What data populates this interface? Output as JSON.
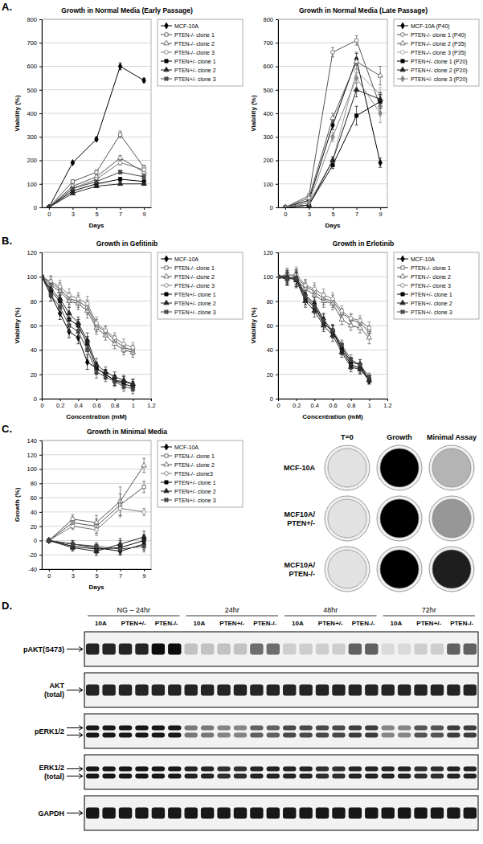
{
  "panel_labels": [
    "A.",
    "B.",
    "C.",
    "D."
  ],
  "chart_data": [
    {
      "type": "line",
      "title": "Growth in Normal Media (Early Passage)",
      "x_label": "Days",
      "y_label": "Viability (%)",
      "categories": [
        "0",
        "3",
        "5",
        "7",
        "9"
      ],
      "ylim": [
        0,
        800
      ],
      "yticks": [
        0,
        100,
        200,
        300,
        400,
        500,
        600,
        700,
        800
      ],
      "grid": true,
      "legend": "right",
      "series": [
        {
          "name": "MCF-10A",
          "color": "#000000",
          "marker": "diamond",
          "values": [
            0,
            190,
            290,
            600,
            540
          ],
          "errors": [
            0,
            5,
            8,
            15,
            8
          ]
        },
        {
          "name": "PTEN-/- clone 1",
          "color": "#555555",
          "marker": "square-open",
          "values": [
            0,
            110,
            150,
            310,
            170
          ],
          "errors": [
            0,
            8,
            10,
            15,
            10
          ]
        },
        {
          "name": "PTEN-/- clone 2",
          "color": "#555555",
          "marker": "triangle-open",
          "values": [
            0,
            90,
            130,
            210,
            150
          ],
          "errors": [
            0,
            6,
            8,
            10,
            8
          ]
        },
        {
          "name": "PTEN-/- clone 3",
          "color": "#777777",
          "marker": "circle-open",
          "values": [
            0,
            80,
            120,
            190,
            160
          ],
          "errors": [
            0,
            5,
            8,
            10,
            8
          ]
        },
        {
          "name": "PTEN+/- clone 1",
          "color": "#000000",
          "marker": "square",
          "values": [
            0,
            70,
            100,
            120,
            110
          ],
          "errors": [
            0,
            5,
            6,
            8,
            6
          ]
        },
        {
          "name": "PTEN+/- clone 2",
          "color": "#222222",
          "marker": "triangle",
          "values": [
            0,
            60,
            90,
            100,
            100
          ],
          "errors": [
            0,
            5,
            5,
            6,
            6
          ]
        },
        {
          "name": "PTEN+/- clone 3",
          "color": "#444444",
          "marker": "cross",
          "values": [
            0,
            80,
            110,
            150,
            130
          ],
          "errors": [
            0,
            5,
            6,
            8,
            8
          ]
        }
      ]
    },
    {
      "type": "line",
      "title": "Growth in Normal Media (Late Passage)",
      "x_label": "Days",
      "y_label": "Viability (%)",
      "categories": [
        "0",
        "3",
        "5",
        "7",
        "9"
      ],
      "ylim": [
        0,
        800
      ],
      "yticks": [
        0,
        100,
        200,
        300,
        400,
        500,
        600,
        700,
        800
      ],
      "grid": true,
      "legend": "right",
      "series": [
        {
          "name": "MCF-10A (P40)",
          "color": "#000000",
          "marker": "diamond",
          "values": [
            0,
            30,
            350,
            630,
            190
          ],
          "errors": [
            0,
            5,
            20,
            25,
            20
          ]
        },
        {
          "name": "PTEN-/- clone 1 (P40)",
          "color": "#555555",
          "marker": "circle-open",
          "values": [
            0,
            50,
            660,
            710,
            430
          ],
          "errors": [
            0,
            8,
            20,
            20,
            30
          ]
        },
        {
          "name": "PTEN-/- clone 2 (P35)",
          "color": "#555555",
          "marker": "triangle-open",
          "values": [
            0,
            40,
            380,
            620,
            560
          ],
          "errors": [
            0,
            6,
            20,
            40,
            40
          ]
        },
        {
          "name": "PTEN-/- clone 3 (P35)",
          "color": "#999999",
          "marker": "circle-open",
          "values": [
            0,
            20,
            200,
            580,
            480
          ],
          "errors": [
            0,
            5,
            15,
            30,
            30
          ]
        },
        {
          "name": "PTEN+/- clone 1 (P20)",
          "color": "#000000",
          "marker": "square",
          "values": [
            0,
            10,
            180,
            390,
            450
          ],
          "errors": [
            0,
            4,
            15,
            40,
            30
          ]
        },
        {
          "name": "PTEN+/- clone 2 (P20)",
          "color": "#222222",
          "marker": "triangle",
          "values": [
            0,
            10,
            200,
            500,
            460
          ],
          "errors": [
            0,
            4,
            15,
            30,
            30
          ]
        },
        {
          "name": "PTEN+/- clone 3 (P20)",
          "color": "#888888",
          "marker": "diamond",
          "values": [
            0,
            20,
            300,
            550,
            400
          ],
          "errors": [
            0,
            5,
            20,
            40,
            40
          ]
        }
      ]
    },
    {
      "type": "line",
      "title": "Growth in Gefitinib",
      "x_label": "Concentration (mM)",
      "y_label": "Viability (%)",
      "x": [
        0,
        0.1,
        0.2,
        0.3,
        0.4,
        0.5,
        0.6,
        0.7,
        0.8,
        0.9,
        1
      ],
      "xlim": [
        0,
        1.2
      ],
      "xticks": [
        0,
        0.2,
        0.4,
        0.6,
        0.8,
        1,
        1.2
      ],
      "ylim": [
        0,
        120
      ],
      "yticks": [
        0,
        20,
        40,
        60,
        80,
        100,
        120
      ],
      "grid": true,
      "legend": "right",
      "series": [
        {
          "name": "MCF-10A",
          "color": "#000000",
          "marker": "diamond",
          "values": [
            100,
            85,
            70,
            55,
            50,
            30,
            25,
            20,
            15,
            14,
            12
          ],
          "errors": [
            0,
            5,
            5,
            5,
            5,
            6,
            5,
            4,
            4,
            4,
            4
          ]
        },
        {
          "name": "PTEN-/- clone 1",
          "color": "#555555",
          "marker": "square-open",
          "values": [
            100,
            95,
            90,
            82,
            80,
            75,
            60,
            55,
            48,
            42,
            40
          ],
          "errors": [
            0,
            5,
            5,
            5,
            5,
            6,
            5,
            4,
            4,
            4,
            4
          ]
        },
        {
          "name": "PTEN-/- clone 2",
          "color": "#555555",
          "marker": "triangle-open",
          "values": [
            100,
            93,
            88,
            80,
            78,
            72,
            58,
            52,
            45,
            40,
            38
          ],
          "errors": [
            0,
            5,
            5,
            5,
            5,
            6,
            5,
            4,
            4,
            4,
            4
          ]
        },
        {
          "name": "PTEN-/- clone 3",
          "color": "#777777",
          "marker": "circle-open",
          "values": [
            100,
            96,
            92,
            85,
            82,
            78,
            62,
            56,
            50,
            45,
            42
          ],
          "errors": [
            0,
            5,
            5,
            5,
            5,
            6,
            5,
            4,
            4,
            4,
            4
          ]
        },
        {
          "name": "PTEN+/- clone 1",
          "color": "#000000",
          "marker": "square",
          "values": [
            100,
            88,
            80,
            65,
            60,
            45,
            25,
            20,
            15,
            12,
            10
          ],
          "errors": [
            0,
            5,
            5,
            5,
            5,
            6,
            5,
            4,
            4,
            4,
            4
          ]
        },
        {
          "name": "PTEN+/- clone 2",
          "color": "#222222",
          "marker": "triangle",
          "values": [
            100,
            90,
            82,
            70,
            62,
            48,
            28,
            22,
            18,
            15,
            12
          ],
          "errors": [
            0,
            5,
            5,
            5,
            5,
            6,
            5,
            4,
            4,
            4,
            4
          ]
        },
        {
          "name": "PTEN+/- clone 3",
          "color": "#444444",
          "marker": "cross",
          "values": [
            100,
            85,
            75,
            60,
            55,
            40,
            22,
            18,
            14,
            10,
            8
          ],
          "errors": [
            0,
            5,
            5,
            5,
            5,
            6,
            5,
            4,
            4,
            4,
            4
          ]
        }
      ]
    },
    {
      "type": "line",
      "title": "Growth in Erlotinib",
      "x_label": "Concentration (mM)",
      "y_label": "Viability (%)",
      "x": [
        0,
        0.1,
        0.2,
        0.3,
        0.4,
        0.5,
        0.6,
        0.7,
        0.8,
        0.9,
        1
      ],
      "xlim": [
        0,
        1.2
      ],
      "xticks": [
        0,
        0.2,
        0.4,
        0.6,
        0.8,
        1,
        1.2
      ],
      "ylim": [
        0,
        120
      ],
      "yticks": [
        0,
        20,
        40,
        60,
        80,
        100,
        120
      ],
      "grid": true,
      "legend": "right",
      "series": [
        {
          "name": "MCF-10A",
          "color": "#000000",
          "marker": "diamond",
          "values": [
            100,
            98,
            100,
            85,
            78,
            65,
            55,
            42,
            30,
            28,
            15
          ],
          "errors": [
            0,
            5,
            6,
            5,
            5,
            5,
            5,
            4,
            4,
            4,
            3
          ]
        },
        {
          "name": "PTEN-/- clone 1",
          "color": "#555555",
          "marker": "square-open",
          "values": [
            100,
            102,
            100,
            92,
            88,
            82,
            80,
            70,
            65,
            62,
            55
          ],
          "errors": [
            0,
            5,
            6,
            5,
            5,
            5,
            5,
            4,
            4,
            4,
            5
          ]
        },
        {
          "name": "PTEN-/- clone 2",
          "color": "#555555",
          "marker": "triangle-open",
          "values": [
            100,
            100,
            98,
            90,
            85,
            80,
            78,
            65,
            60,
            58,
            50
          ],
          "errors": [
            0,
            5,
            6,
            5,
            5,
            5,
            5,
            4,
            4,
            4,
            5
          ]
        },
        {
          "name": "PTEN-/- clone 3",
          "color": "#777777",
          "marker": "circle-open",
          "values": [
            100,
            101,
            102,
            93,
            90,
            85,
            82,
            72,
            66,
            64,
            58
          ],
          "errors": [
            0,
            5,
            6,
            5,
            5,
            5,
            5,
            4,
            4,
            4,
            5
          ]
        },
        {
          "name": "PTEN+/- clone 1",
          "color": "#000000",
          "marker": "square",
          "values": [
            100,
            99,
            98,
            82,
            75,
            62,
            55,
            40,
            28,
            25,
            16
          ],
          "errors": [
            0,
            5,
            6,
            5,
            5,
            5,
            5,
            4,
            4,
            4,
            3
          ]
        },
        {
          "name": "PTEN+/- clone 2",
          "color": "#222222",
          "marker": "triangle",
          "values": [
            100,
            100,
            97,
            80,
            72,
            60,
            52,
            38,
            26,
            24,
            15
          ],
          "errors": [
            0,
            5,
            6,
            5,
            5,
            5,
            5,
            4,
            4,
            4,
            3
          ]
        },
        {
          "name": "PTEN+/- clone 3",
          "color": "#444444",
          "marker": "cross",
          "values": [
            100,
            98,
            99,
            84,
            76,
            64,
            56,
            44,
            32,
            28,
            18
          ],
          "errors": [
            0,
            5,
            6,
            5,
            5,
            5,
            5,
            4,
            4,
            4,
            3
          ]
        }
      ]
    },
    {
      "type": "line",
      "title": "Growth in Minimal Media",
      "x_label": "Days",
      "y_label": "Growth (%)",
      "categories": [
        "0",
        "3",
        "5",
        "7",
        "9"
      ],
      "ylim": [
        -40,
        140
      ],
      "yticks": [
        -40,
        -20,
        0,
        20,
        40,
        60,
        80,
        100,
        120,
        140
      ],
      "grid": true,
      "legend": "right",
      "series": [
        {
          "name": "MCF-10A",
          "color": "#000000",
          "marker": "diamond",
          "values": [
            0,
            -5,
            -10,
            -15,
            -5
          ],
          "errors": [
            0,
            5,
            5,
            5,
            8
          ]
        },
        {
          "name": "PTEN-/- clone 1",
          "color": "#555555",
          "marker": "square-open",
          "values": [
            0,
            25,
            20,
            50,
            75
          ],
          "errors": [
            0,
            8,
            10,
            15,
            8
          ]
        },
        {
          "name": "PTEN-/- clone 2",
          "color": "#555555",
          "marker": "triangle-open",
          "values": [
            0,
            30,
            25,
            55,
            105
          ],
          "errors": [
            0,
            6,
            10,
            20,
            10
          ]
        },
        {
          "name": "PTEN-/- clone3",
          "color": "#777777",
          "marker": "circle-open",
          "values": [
            0,
            20,
            15,
            45,
            40
          ],
          "errors": [
            0,
            5,
            8,
            12,
            5
          ]
        },
        {
          "name": "PTEN+/- clone 1",
          "color": "#000000",
          "marker": "square",
          "values": [
            0,
            -8,
            -12,
            -10,
            0
          ],
          "errors": [
            0,
            5,
            6,
            10,
            8
          ]
        },
        {
          "name": "PTEN+/- clone 2",
          "color": "#222222",
          "marker": "triangle",
          "values": [
            0,
            -10,
            -15,
            -5,
            5
          ],
          "errors": [
            0,
            5,
            6,
            8,
            8
          ]
        },
        {
          "name": "PTEN+/- clone 3",
          "color": "#444444",
          "marker": "cross",
          "values": [
            0,
            -5,
            -8,
            -12,
            -8
          ],
          "errors": [
            0,
            5,
            5,
            8,
            8
          ]
        }
      ]
    }
  ],
  "wells": {
    "columns": [
      "T=0",
      "Growth",
      "Minimal Assay"
    ],
    "rows": [
      [
        "MCF-10A"
      ],
      [
        "MCF10A/",
        "PTEN+/-"
      ],
      [
        "MCF10A/",
        "PTEN-/-"
      ]
    ],
    "density": [
      [
        0.2,
        1,
        0.4
      ],
      [
        0.2,
        1,
        0.5
      ],
      [
        0.2,
        1,
        0.9
      ]
    ]
  },
  "blot": {
    "groups": [
      "NG – 24hr",
      "24hr",
      "48hr",
      "72hr"
    ],
    "lanes": [
      "10A",
      "PTEN+/-",
      "PTEN-/-"
    ],
    "rows": [
      {
        "label": [
          "pAKT(S473)"
        ],
        "bands": 1,
        "intensity": [
          0.85,
          0.85,
          0.95,
          0.2,
          0.2,
          0.55,
          0.15,
          0.15,
          0.6,
          0.1,
          0.15,
          0.6
        ]
      },
      {
        "label": [
          "AKT",
          "(total)"
        ],
        "bands": 1,
        "intensity": [
          0.85,
          0.85,
          0.85,
          0.85,
          0.85,
          0.85,
          0.85,
          0.85,
          0.85,
          0.85,
          0.85,
          0.85
        ]
      },
      {
        "label": [
          "pERK1/2"
        ],
        "bands": 2,
        "intensity": [
          0.9,
          0.9,
          0.9,
          0.5,
          0.45,
          0.6,
          0.7,
          0.7,
          0.75,
          0.45,
          0.65,
          0.75
        ]
      },
      {
        "label": [
          "ERK1/2",
          "(total)"
        ],
        "bands": 2,
        "intensity": [
          0.9,
          0.9,
          0.9,
          0.85,
          0.8,
          0.85,
          0.85,
          0.8,
          0.85,
          0.85,
          0.8,
          0.85
        ]
      },
      {
        "label": [
          "GAPDH"
        ],
        "bands": 1,
        "intensity": [
          0.9,
          0.9,
          0.9,
          0.9,
          0.9,
          0.9,
          0.9,
          0.9,
          0.9,
          0.9,
          0.9,
          0.9
        ]
      }
    ]
  }
}
